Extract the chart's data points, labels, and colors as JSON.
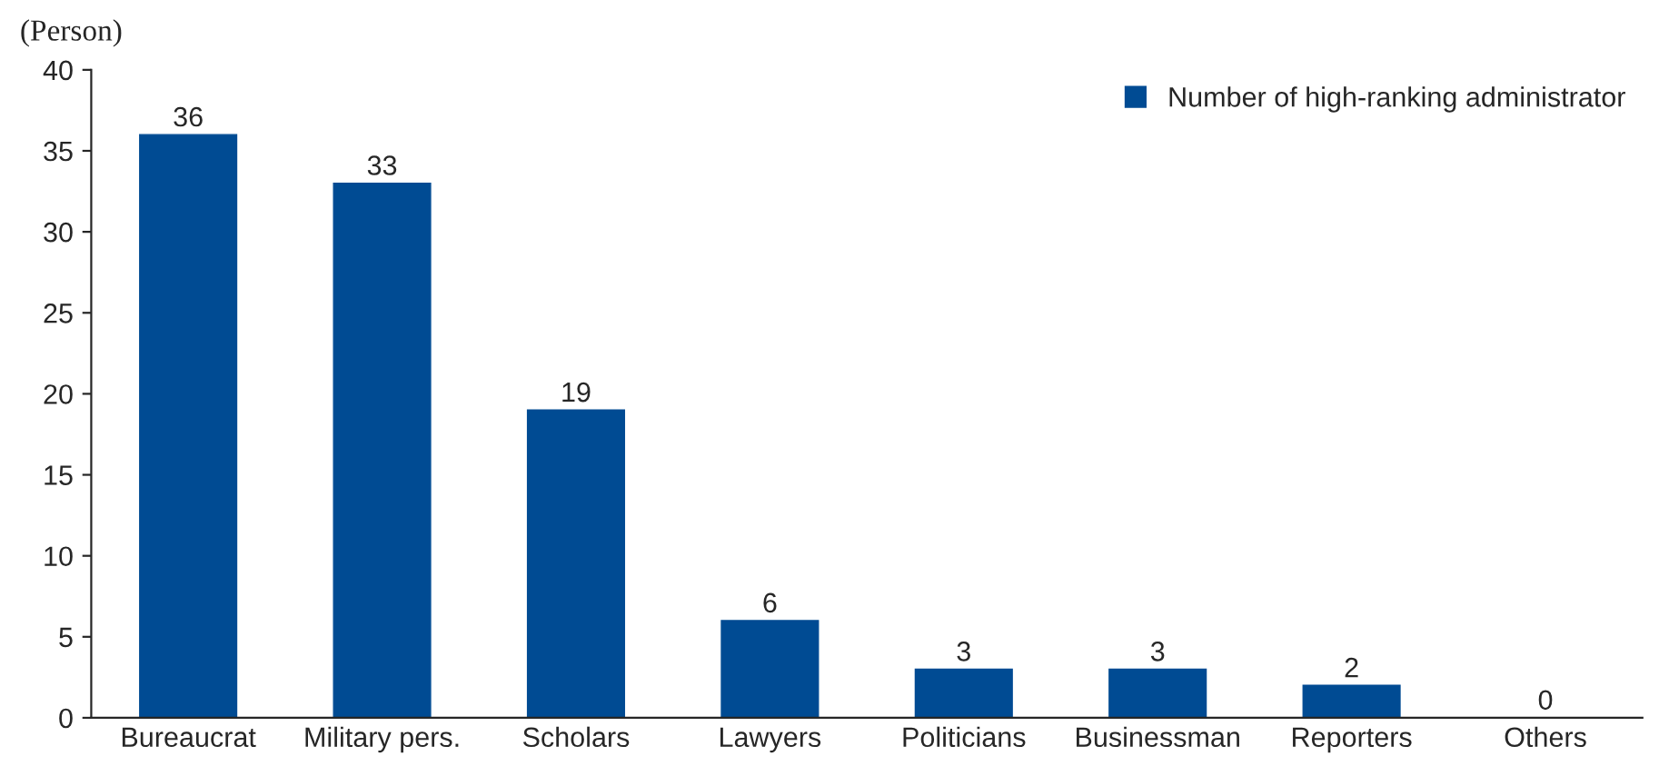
{
  "chart_data": {
    "type": "bar",
    "ylabel": "(Person)",
    "categories": [
      "Bureaucrat",
      "Military pers.",
      "Scholars",
      "Lawyers",
      "Politicians",
      "Businessman",
      "Reporters",
      "Others"
    ],
    "series": [
      {
        "name": "Number of high-ranking administrator",
        "color": "#004b93",
        "values": [
          36,
          33,
          19,
          6,
          3,
          3,
          2,
          0
        ]
      }
    ],
    "ylim": [
      0,
      40
    ],
    "yticks": [
      0,
      5,
      10,
      15,
      20,
      25,
      30,
      35,
      40
    ],
    "data_labels": true,
    "grid": false,
    "legend": "top right"
  }
}
